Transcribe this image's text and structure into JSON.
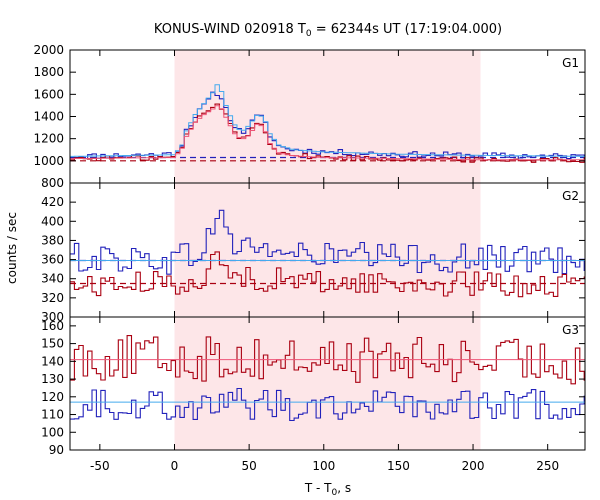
{
  "chart_data": {
    "type": "line",
    "title": "KONUS-WIND 020918 T",
    "title_sub": "0",
    "title_rest": " = 62344s UT (17:19:04.000)",
    "xlabel": "T - T",
    "xlabel_sub": "0",
    "xlabel_rest": ", s",
    "ylabel": "counts / sec",
    "xlim": [
      -70,
      275
    ],
    "x_ticks": [
      -50,
      0,
      50,
      100,
      150,
      200,
      250
    ],
    "highlight_interval": [
      0,
      205
    ],
    "colors": {
      "highlight": "#fde6e8",
      "blue": "#2222bb",
      "red": "#aa0011",
      "cyan": "#44aaee",
      "pink": "#ee5577",
      "dashed_red": "#aa0011",
      "dashed_blue": "#2222bb"
    },
    "panels": [
      {
        "label": "G1",
        "ylim": [
          800,
          2000
        ],
        "y_ticks": [
          800,
          1000,
          1200,
          1400,
          1600,
          1800,
          2000
        ],
        "background_red": 1000,
        "background_blue": 1030,
        "background_red_slope": 0,
        "background_blue_slope": 0,
        "series": [
          {
            "color_key": "blue",
            "role": "counts-blue",
            "profile": [
              [
                -70,
                1040
              ],
              [
                0,
                1060
              ],
              [
                5,
                1150
              ],
              [
                8,
                1280
              ],
              [
                14,
                1400
              ],
              [
                20,
                1500
              ],
              [
                26,
                1600
              ],
              [
                30,
                1620
              ],
              [
                35,
                1450
              ],
              [
                40,
                1320
              ],
              [
                45,
                1250
              ],
              [
                50,
                1310
              ],
              [
                55,
                1400
              ],
              [
                60,
                1380
              ],
              [
                63,
                1250
              ],
              [
                70,
                1130
              ],
              [
                80,
                1100
              ],
              [
                100,
                1080
              ],
              [
                150,
                1060
              ],
              [
                200,
                1050
              ],
              [
                275,
                1040
              ]
            ],
            "noise": 20
          },
          {
            "color_key": "red",
            "role": "counts-red",
            "profile": [
              [
                -70,
                1020
              ],
              [
                0,
                1030
              ],
              [
                5,
                1120
              ],
              [
                8,
                1230
              ],
              [
                14,
                1360
              ],
              [
                20,
                1430
              ],
              [
                26,
                1480
              ],
              [
                30,
                1530
              ],
              [
                35,
                1390
              ],
              [
                40,
                1260
              ],
              [
                45,
                1200
              ],
              [
                50,
                1240
              ],
              [
                55,
                1340
              ],
              [
                60,
                1320
              ],
              [
                63,
                1180
              ],
              [
                70,
                1080
              ],
              [
                80,
                1050
              ],
              [
                100,
                1030
              ],
              [
                150,
                1020
              ],
              [
                200,
                1010
              ],
              [
                275,
                1010
              ]
            ],
            "noise": 18
          },
          {
            "color_key": "cyan",
            "role": "model-cyan",
            "profile": [
              [
                -70,
                1040
              ],
              [
                0,
                1055
              ],
              [
                5,
                1140
              ],
              [
                8,
                1270
              ],
              [
                14,
                1420
              ],
              [
                20,
                1520
              ],
              [
                26,
                1620
              ],
              [
                30,
                1720
              ],
              [
                32,
                1600
              ],
              [
                35,
                1480
              ],
              [
                40,
                1330
              ],
              [
                45,
                1260
              ],
              [
                50,
                1320
              ],
              [
                55,
                1410
              ],
              [
                60,
                1400
              ],
              [
                63,
                1260
              ],
              [
                70,
                1140
              ],
              [
                80,
                1100
              ],
              [
                100,
                1080
              ],
              [
                150,
                1060
              ],
              [
                200,
                1050
              ],
              [
                275,
                1040
              ]
            ],
            "noise": 0
          },
          {
            "color_key": "pink",
            "role": "model-pink",
            "profile": [
              [
                -70,
                1020
              ],
              [
                0,
                1030
              ],
              [
                5,
                1110
              ],
              [
                8,
                1220
              ],
              [
                14,
                1350
              ],
              [
                20,
                1420
              ],
              [
                26,
                1470
              ],
              [
                30,
                1510
              ],
              [
                35,
                1380
              ],
              [
                40,
                1250
              ],
              [
                45,
                1190
              ],
              [
                50,
                1230
              ],
              [
                55,
                1330
              ],
              [
                60,
                1310
              ],
              [
                63,
                1170
              ],
              [
                70,
                1070
              ],
              [
                80,
                1045
              ],
              [
                100,
                1030
              ],
              [
                150,
                1020
              ],
              [
                200,
                1010
              ],
              [
                275,
                1010
              ]
            ],
            "noise": 0
          }
        ]
      },
      {
        "label": "G2",
        "ylim": [
          300,
          440
        ],
        "y_ticks": [
          300,
          320,
          340,
          360,
          380,
          400,
          420
        ],
        "background_red": 335,
        "background_blue": 359,
        "series": [
          {
            "color_key": "blue",
            "role": "counts-blue",
            "profile": [
              [
                -70,
                362
              ],
              [
                0,
                360
              ],
              [
                20,
                370
              ],
              [
                26,
                395
              ],
              [
                30,
                410
              ],
              [
                34,
                395
              ],
              [
                40,
                375
              ],
              [
                60,
                372
              ],
              [
                80,
                365
              ],
              [
                150,
                362
              ],
              [
                275,
                360
              ]
            ],
            "noise": 12
          },
          {
            "color_key": "red",
            "role": "counts-red",
            "profile": [
              [
                -70,
                333
              ],
              [
                0,
                335
              ],
              [
                20,
                342
              ],
              [
                26,
                355
              ],
              [
                30,
                360
              ],
              [
                34,
                350
              ],
              [
                40,
                343
              ],
              [
                60,
                340
              ],
              [
                80,
                337
              ],
              [
                150,
                335
              ],
              [
                275,
                333
              ]
            ],
            "noise": 10
          },
          {
            "color_key": "cyan",
            "role": "model-cyan",
            "profile": [
              [
                -70,
                359
              ],
              [
                275,
                359
              ]
            ],
            "noise": 0
          }
        ]
      },
      {
        "label": "G3",
        "ylim": [
          90,
          165
        ],
        "y_ticks": [
          90,
          100,
          110,
          120,
          130,
          140,
          150,
          160
        ],
        "background_red": null,
        "background_blue": null,
        "series": [
          {
            "color_key": "red",
            "role": "counts-red",
            "profile": [
              [
                -70,
                142
              ],
              [
                275,
                140
              ]
            ],
            "noise": 10
          },
          {
            "color_key": "blue",
            "role": "counts-blue",
            "profile": [
              [
                -70,
                116
              ],
              [
                275,
                115
              ]
            ],
            "noise": 7
          },
          {
            "color_key": "pink",
            "role": "model-pink",
            "profile": [
              [
                -70,
                141
              ],
              [
                275,
                141
              ]
            ],
            "noise": 0
          },
          {
            "color_key": "cyan",
            "role": "model-cyan",
            "profile": [
              [
                -70,
                117
              ],
              [
                275,
                117
              ]
            ],
            "noise": 0
          }
        ]
      }
    ]
  }
}
